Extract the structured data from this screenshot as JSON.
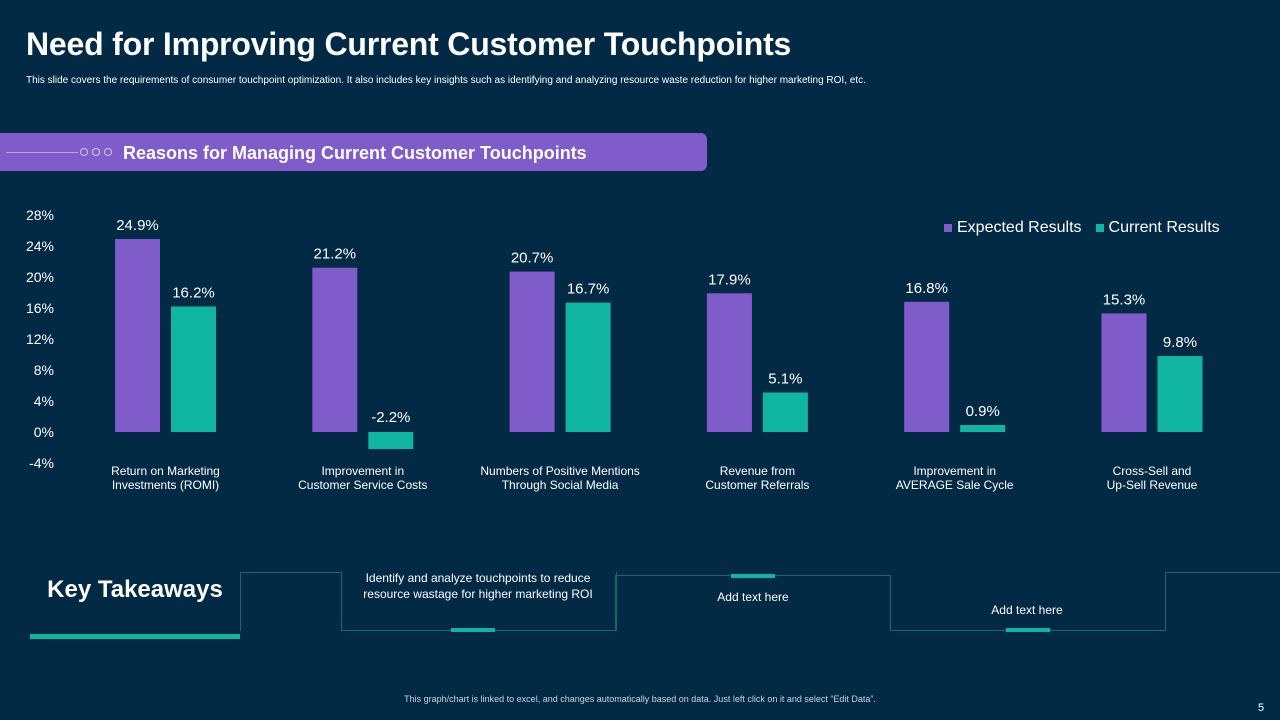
{
  "header": {
    "title": "Need for Improving Current Customer Touchpoints",
    "subtitle": "This slide covers the requirements of consumer touchpoint optimization. It also includes key insights such as identifying and analyzing resource waste reduction for higher marketing ROI,  etc."
  },
  "banner": {
    "label": "Reasons for Managing Current Customer Touchpoints"
  },
  "chart_data": {
    "type": "bar",
    "categories": [
      [
        "Return on Marketing",
        "Investments (ROMI)"
      ],
      [
        "Improvement in",
        "Customer Service Costs"
      ],
      [
        "Numbers of Positive Mentions",
        "Through Social Media"
      ],
      [
        "Revenue from",
        "Customer Referrals"
      ],
      [
        "Improvement in",
        "AVERAGE  Sale Cycle"
      ],
      [
        "Cross-Sell and",
        "Up-Sell Revenue"
      ]
    ],
    "series": [
      {
        "name": "Expected Results",
        "color": "#7f5cc9",
        "values": [
          24.9,
          21.2,
          20.7,
          17.9,
          16.8,
          15.3
        ]
      },
      {
        "name": "Current Results",
        "color": "#0fb5a0",
        "values": [
          16.2,
          -2.2,
          16.7,
          5.1,
          0.9,
          9.8
        ]
      }
    ],
    "data_labels": [
      [
        "24.9%",
        "21.2%",
        "20.7%",
        "17.9%",
        "16.8%",
        "15.3%"
      ],
      [
        "16.2%",
        "-2.2%",
        "16.7%",
        "5.1%",
        "0.9%",
        "9.8%"
      ]
    ],
    "yticks": [
      28,
      24,
      20,
      16,
      12,
      8,
      4,
      0,
      -4
    ],
    "ytick_labels": [
      "28%",
      "24%",
      "20%",
      "16%",
      "12%",
      "8%",
      "4%",
      "0%",
      "-4%"
    ],
    "ylim": [
      -4,
      28
    ],
    "grid": false,
    "legend_position": "top-right"
  },
  "takeaways": {
    "label": "Key Takeaways",
    "items": [
      "Identify and analyze  touchpoints to reduce resource wastage for higher marketing ROI",
      "Add text here",
      "Add text here"
    ]
  },
  "footer": {
    "note": "This graph/chart is linked to excel, and changes automatically based on data. Just left click on it and select “Edit Data”.",
    "page_number": "5"
  }
}
